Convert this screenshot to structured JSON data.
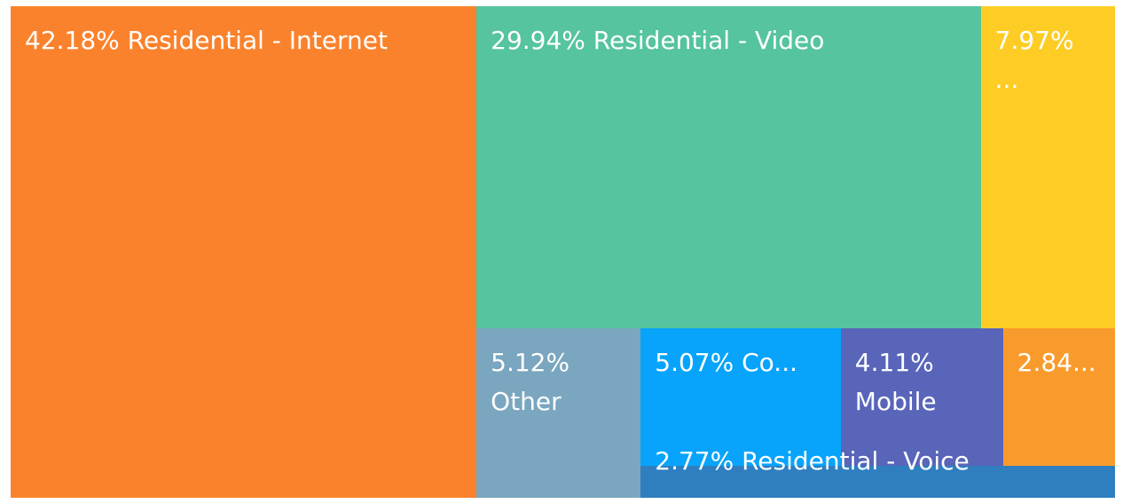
{
  "chart_data": {
    "type": "treemap",
    "items": [
      {
        "label": "42.18% Residential - Internet",
        "value": 42.18,
        "color": "#fb822c"
      },
      {
        "label": "29.94% Residential - Video",
        "value": 29.94,
        "color": "#56c49e"
      },
      {
        "label": "7.97% ...",
        "value": 7.97,
        "color": "#fdcd25"
      },
      {
        "label": "5.12% Other",
        "value": 5.12,
        "color": "#7aa6bf"
      },
      {
        "label": "5.07% Co...",
        "value": 5.07,
        "color": "#08a4fc"
      },
      {
        "label": "4.11% Mobile",
        "value": 4.11,
        "color": "#5865b9"
      },
      {
        "label": "2.84...",
        "value": 2.84,
        "color": "#f99b2c"
      },
      {
        "label": "2.77% Residential - Voice",
        "value": 2.77,
        "color": "#2f7fc0"
      }
    ]
  }
}
